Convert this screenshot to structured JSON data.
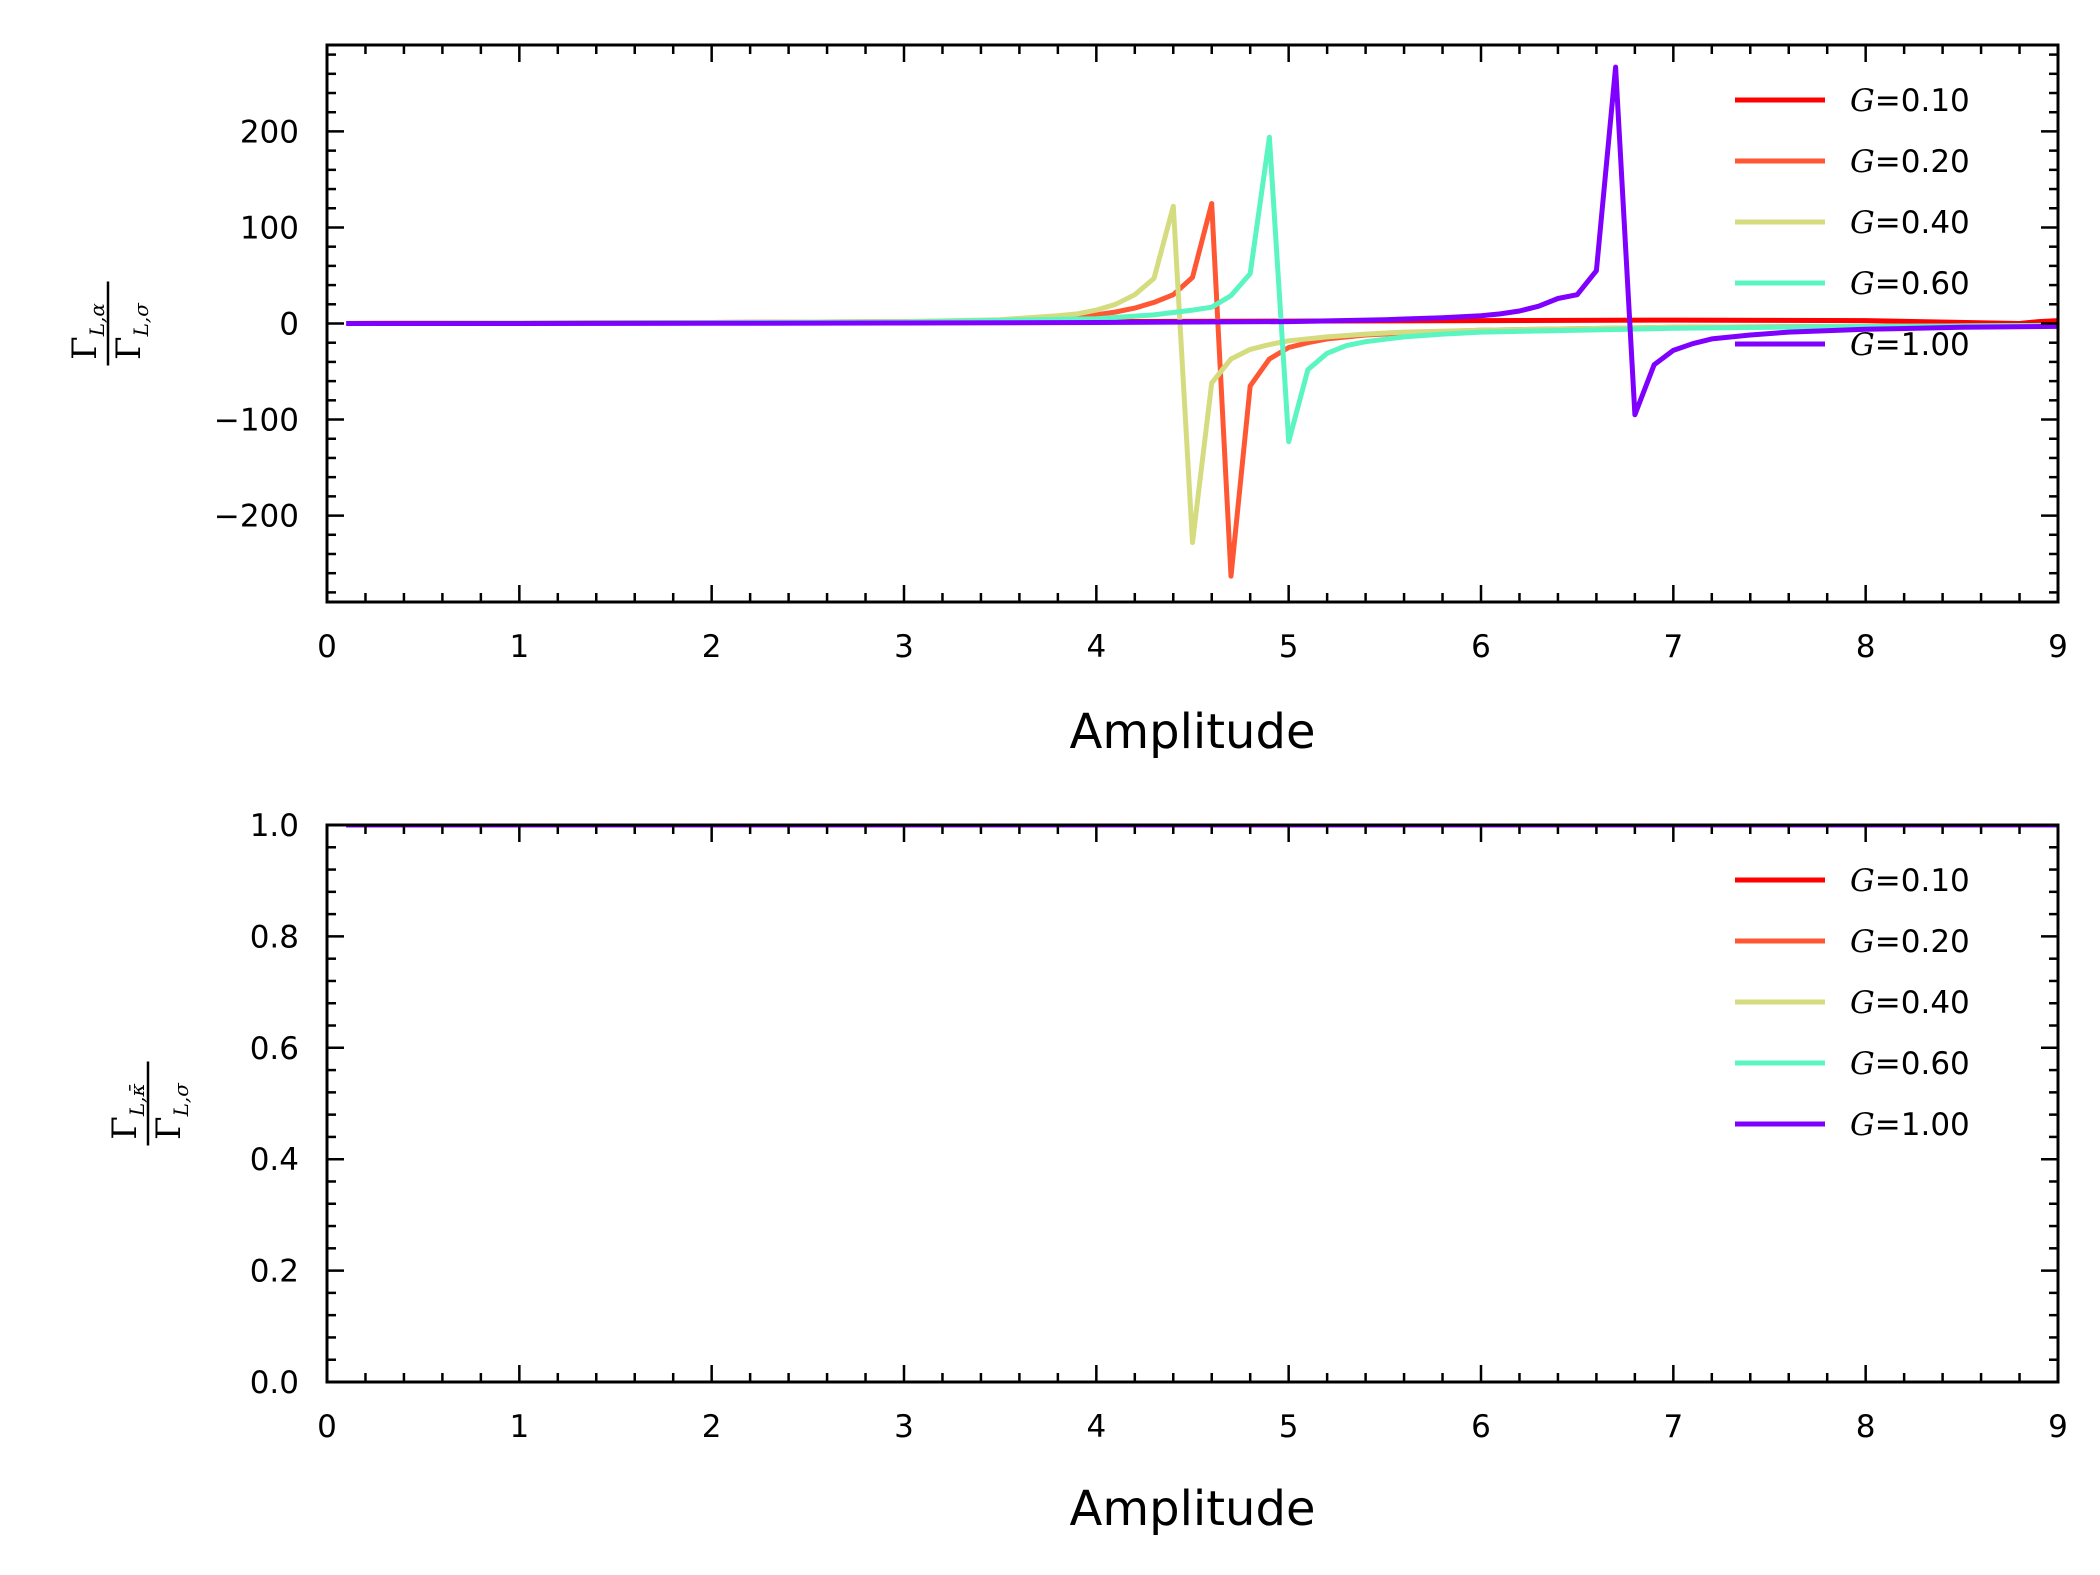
{
  "chart_data": [
    {
      "type": "line",
      "xlabel": "Amplitude",
      "ylabel": {
        "numerator": "Γ",
        "numerator_sub": "L,α",
        "denominator": "Γ",
        "denominator_sub": "L,σ"
      },
      "xlim": [
        0,
        9
      ],
      "ylim": [
        -290,
        290
      ],
      "xticks": [
        0,
        1,
        2,
        3,
        4,
        5,
        6,
        7,
        8,
        9
      ],
      "yticks": [
        -200,
        -100,
        0,
        100,
        200
      ],
      "ytick_labels": [
        "−200",
        "−100",
        "0",
        "100",
        "200"
      ],
      "legend_position": "top-right",
      "series": [
        {
          "name": "G=0.10",
          "legend_var": "G",
          "legend_value": "=0.10",
          "color": "#ff0000",
          "x": [
            0.1,
            1.0,
            2.0,
            3.0,
            4.0,
            5.0,
            6.0,
            7.0,
            8.0,
            8.8,
            8.9,
            9.0
          ],
          "y": [
            0,
            0.5,
            1,
            1.5,
            2,
            2.5,
            3,
            3.5,
            3,
            0,
            2,
            3
          ]
        },
        {
          "name": "G=0.20",
          "legend_var": "G",
          "legend_value": "=0.20",
          "color": "#ff5733",
          "x": [
            0.1,
            1.0,
            2.0,
            3.0,
            3.5,
            3.8,
            4.0,
            4.1,
            4.2,
            4.3,
            4.4,
            4.5,
            4.6,
            4.7,
            4.8,
            4.9,
            5.0,
            5.1,
            5.2,
            5.4,
            5.6,
            6.0,
            7.0,
            8.0,
            9.0
          ],
          "y": [
            0,
            0.5,
            1,
            2,
            3,
            5,
            9,
            12,
            16,
            22,
            30,
            48,
            125,
            -263,
            -65,
            -37,
            -25,
            -20,
            -16,
            -12,
            -10,
            -7,
            -4,
            -3,
            -2
          ]
        },
        {
          "name": "G=0.40",
          "legend_var": "G",
          "legend_value": "=0.40",
          "color": "#d4dc7f",
          "x": [
            0.1,
            1.0,
            2.0,
            3.0,
            3.5,
            3.8,
            3.9,
            4.0,
            4.1,
            4.2,
            4.3,
            4.4,
            4.5,
            4.6,
            4.7,
            4.8,
            4.9,
            5.0,
            5.2,
            5.4,
            5.6,
            6.0,
            7.0,
            8.0,
            9.0
          ],
          "y": [
            0,
            0.5,
            1,
            2,
            4,
            8,
            10,
            14,
            20,
            30,
            47,
            122,
            -228,
            -62,
            -37,
            -27,
            -22,
            -18,
            -14,
            -11,
            -9,
            -7,
            -4,
            -3,
            -2
          ]
        },
        {
          "name": "G=0.60",
          "legend_var": "G",
          "legend_value": "=0.60",
          "color": "#5af5c0",
          "x": [
            0.1,
            1.0,
            2.0,
            3.0,
            4.0,
            4.3,
            4.5,
            4.6,
            4.7,
            4.8,
            4.9,
            5.0,
            5.1,
            5.2,
            5.3,
            5.4,
            5.6,
            5.8,
            6.0,
            6.5,
            7.0,
            8.0,
            9.0
          ],
          "y": [
            0,
            0.3,
            0.8,
            1.5,
            5,
            9,
            14,
            17,
            29,
            52,
            194,
            -123,
            -48,
            -31,
            -23,
            -19,
            -14,
            -11,
            -9,
            -7,
            -5,
            -3,
            -2
          ]
        },
        {
          "name": "G=1.00",
          "legend_var": "G",
          "legend_value": "=1.00",
          "color": "#7f00ff",
          "x": [
            0.1,
            1.0,
            2.0,
            3.0,
            4.0,
            5.0,
            5.5,
            5.8,
            6.0,
            6.1,
            6.2,
            6.3,
            6.4,
            6.5,
            6.6,
            6.7,
            6.8,
            6.9,
            7.0,
            7.1,
            7.2,
            7.4,
            7.6,
            8.0,
            8.5,
            9.0
          ],
          "y": [
            0,
            0,
            0.2,
            0.5,
            1,
            2,
            4,
            6,
            8,
            10,
            13,
            18,
            26,
            30,
            55,
            267,
            -95,
            -43,
            -28,
            -21,
            -16,
            -12,
            -9,
            -6,
            -4,
            -3
          ]
        }
      ]
    },
    {
      "type": "line",
      "xlabel": "Amplitude",
      "ylabel": {
        "numerator": "Γ",
        "numerator_sub": "L,κ̄",
        "denominator": "Γ",
        "denominator_sub": "L,σ"
      },
      "xlim": [
        0,
        9
      ],
      "ylim": [
        0.0,
        1.0
      ],
      "xticks": [
        0,
        1,
        2,
        3,
        4,
        5,
        6,
        7,
        8,
        9
      ],
      "yticks": [
        0.0,
        0.2,
        0.4,
        0.6,
        0.8,
        1.0
      ],
      "ytick_labels": [
        "0.0",
        "0.2",
        "0.4",
        "0.6",
        "0.8",
        "1.0"
      ],
      "legend_position": "top-right",
      "series": [
        {
          "name": "G=0.10",
          "legend_var": "G",
          "legend_value": "=0.10",
          "color": "#ff0000",
          "x": [
            0.1,
            9.0
          ],
          "y": [
            1.0,
            1.0
          ]
        },
        {
          "name": "G=0.20",
          "legend_var": "G",
          "legend_value": "=0.20",
          "color": "#ff5733",
          "x": [
            0.1,
            9.0
          ],
          "y": [
            1.0,
            1.0
          ]
        },
        {
          "name": "G=0.40",
          "legend_var": "G",
          "legend_value": "=0.40",
          "color": "#d4dc7f",
          "x": [
            0.1,
            9.0
          ],
          "y": [
            1.0,
            1.0
          ]
        },
        {
          "name": "G=0.60",
          "legend_var": "G",
          "legend_value": "=0.60",
          "color": "#5af5c0",
          "x": [
            0.1,
            9.0
          ],
          "y": [
            1.0,
            1.0
          ]
        },
        {
          "name": "G=1.00",
          "legend_var": "G",
          "legend_value": "=1.00",
          "color": "#7f00ff",
          "x": [
            0.1,
            9.0
          ],
          "y": [
            1.0,
            1.0
          ]
        }
      ]
    }
  ]
}
